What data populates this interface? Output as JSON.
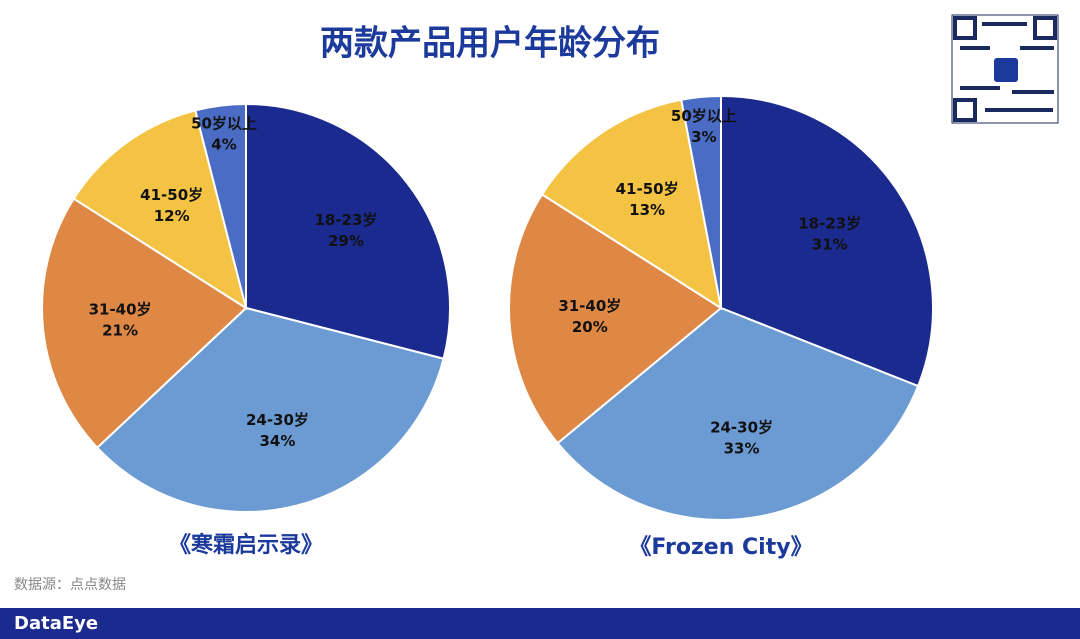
{
  "title": "两款产品用户年龄分布",
  "source": "数据源：点点数据",
  "brand": "DataEye",
  "chart_data": [
    {
      "type": "pie",
      "title": "《寒霜启示录》",
      "categories": [
        "18-23岁",
        "24-30岁",
        "31-40岁",
        "41-50岁",
        "50岁以上"
      ],
      "values": [
        29,
        34,
        21,
        12,
        4
      ],
      "value_labels": [
        "29%",
        "34%",
        "21%",
        "12%",
        "4%"
      ],
      "colors": [
        "#1b2a8e",
        "#6b9bd2",
        "#df8846",
        "#f4c343",
        "#4a6cc4"
      ]
    },
    {
      "type": "pie",
      "title": "《Frozen City》",
      "categories": [
        "18-23岁",
        "24-30岁",
        "31-40岁",
        "41-50岁",
        "50岁以上"
      ],
      "values": [
        31,
        33,
        20,
        13,
        3
      ],
      "value_labels": [
        "31%",
        "33%",
        "20%",
        "13%",
        "3%"
      ],
      "colors": [
        "#1b2a8e",
        "#6b9bd2",
        "#df8846",
        "#f4c343",
        "#4a6cc4"
      ]
    }
  ]
}
